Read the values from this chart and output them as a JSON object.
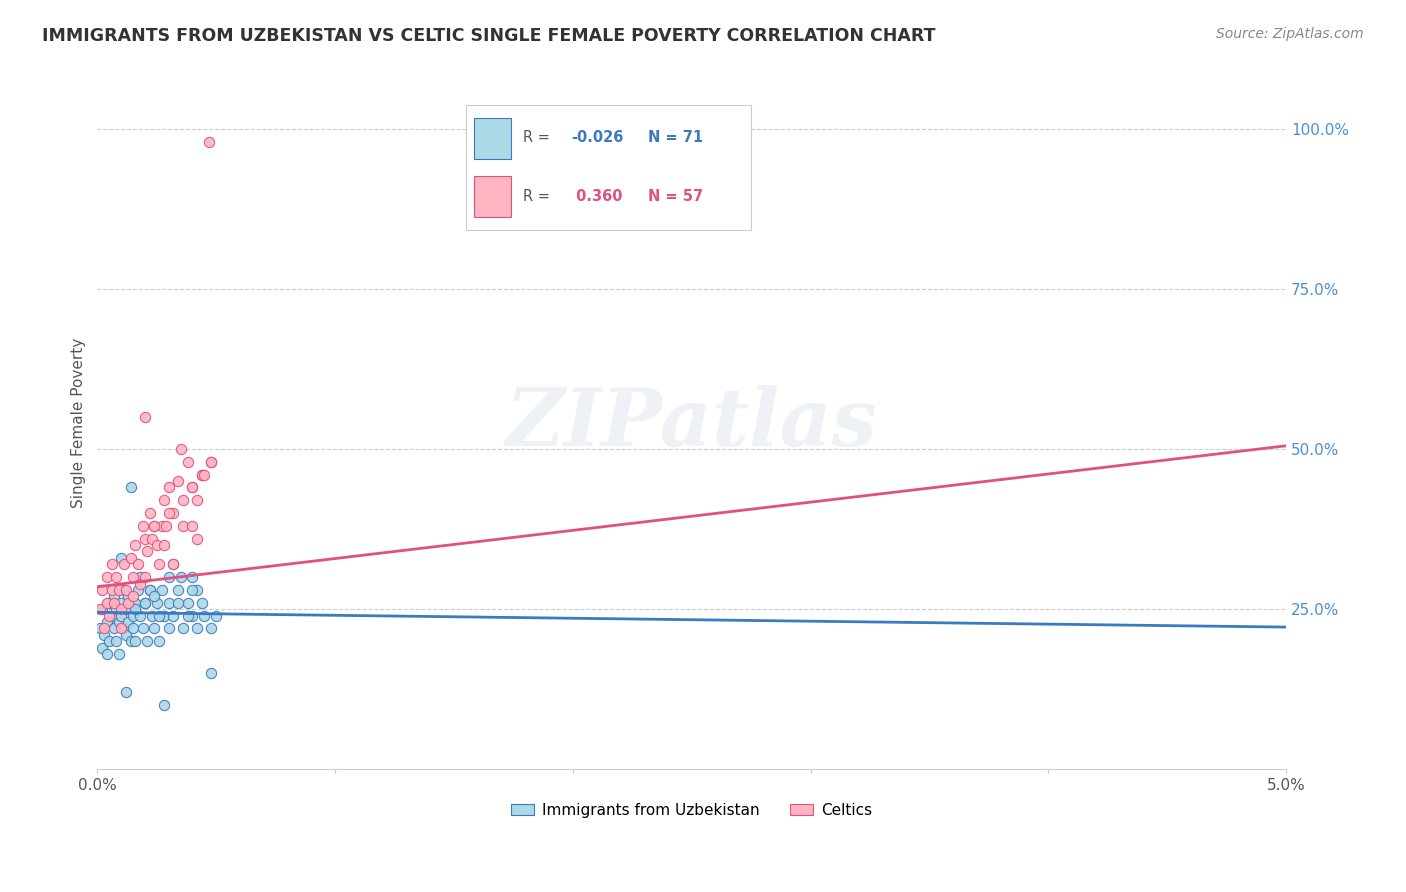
{
  "title": "IMMIGRANTS FROM UZBEKISTAN VS CELTIC SINGLE FEMALE POVERTY CORRELATION CHART",
  "source": "Source: ZipAtlas.com",
  "ylabel": "Single Female Poverty",
  "xlim": [
    0.0,
    0.05
  ],
  "ylim": [
    0.0,
    1.08
  ],
  "xticks": [
    0.0,
    0.01,
    0.02,
    0.03,
    0.04,
    0.05
  ],
  "xtick_labels": [
    "0.0%",
    "",
    "",
    "",
    "",
    "5.0%"
  ],
  "ytick_labels": [
    "25.0%",
    "50.0%",
    "75.0%",
    "100.0%"
  ],
  "yticks": [
    0.25,
    0.5,
    0.75,
    1.0
  ],
  "series1_color": "#add8e6",
  "series2_color": "#ffb6c1",
  "series1_label": "Immigrants from Uzbekistan",
  "series2_label": "Celtics",
  "series1_R": -0.026,
  "series1_N": 71,
  "series2_R": 0.36,
  "series2_N": 57,
  "trend1_color": "#3a7abf",
  "trend2_color": "#e05080",
  "watermark": "ZIPatlas",
  "trend1_x0": 0.0,
  "trend1_y0": 0.245,
  "trend1_x1": 0.05,
  "trend1_y1": 0.222,
  "trend2_x0": 0.0,
  "trend2_y0": 0.285,
  "trend2_x1": 0.05,
  "trend2_y1": 0.505,
  "series1_x": [
    0.0001,
    0.0002,
    0.0002,
    0.0003,
    0.0004,
    0.0004,
    0.0005,
    0.0005,
    0.0006,
    0.0007,
    0.0007,
    0.0008,
    0.0008,
    0.0009,
    0.0009,
    0.001,
    0.001,
    0.0011,
    0.0011,
    0.0012,
    0.0012,
    0.0013,
    0.0013,
    0.0014,
    0.0015,
    0.0015,
    0.0016,
    0.0016,
    0.0017,
    0.0018,
    0.0019,
    0.002,
    0.0021,
    0.0022,
    0.0023,
    0.0024,
    0.0025,
    0.0026,
    0.0027,
    0.0028,
    0.003,
    0.0032,
    0.0034,
    0.0036,
    0.0038,
    0.004,
    0.0042,
    0.0044,
    0.0014,
    0.0018,
    0.0022,
    0.0026,
    0.003,
    0.0034,
    0.0038,
    0.0042,
    0.001,
    0.002,
    0.003,
    0.004,
    0.0035,
    0.0045,
    0.0048,
    0.005,
    0.0016,
    0.0024,
    0.0032,
    0.004,
    0.0048,
    0.0012,
    0.0028
  ],
  "series1_y": [
    0.22,
    0.19,
    0.25,
    0.21,
    0.23,
    0.18,
    0.26,
    0.2,
    0.24,
    0.22,
    0.27,
    0.2,
    0.25,
    0.23,
    0.18,
    0.26,
    0.24,
    0.22,
    0.28,
    0.21,
    0.25,
    0.23,
    0.27,
    0.2,
    0.24,
    0.22,
    0.26,
    0.2,
    0.28,
    0.24,
    0.22,
    0.26,
    0.2,
    0.28,
    0.24,
    0.22,
    0.26,
    0.2,
    0.28,
    0.24,
    0.26,
    0.24,
    0.28,
    0.22,
    0.26,
    0.24,
    0.22,
    0.26,
    0.44,
    0.3,
    0.28,
    0.24,
    0.22,
    0.26,
    0.24,
    0.28,
    0.33,
    0.26,
    0.3,
    0.28,
    0.3,
    0.24,
    0.22,
    0.24,
    0.25,
    0.27,
    0.32,
    0.3,
    0.15,
    0.12,
    0.1
  ],
  "series2_x": [
    0.0001,
    0.0002,
    0.0003,
    0.0004,
    0.0004,
    0.0005,
    0.0006,
    0.0006,
    0.0007,
    0.0008,
    0.0009,
    0.001,
    0.0011,
    0.0012,
    0.0013,
    0.0014,
    0.0015,
    0.0015,
    0.0016,
    0.0017,
    0.0018,
    0.0019,
    0.002,
    0.0021,
    0.0022,
    0.0023,
    0.0024,
    0.0025,
    0.0026,
    0.0027,
    0.0028,
    0.0029,
    0.003,
    0.0032,
    0.0034,
    0.0036,
    0.0038,
    0.004,
    0.0042,
    0.0044,
    0.002,
    0.0024,
    0.0028,
    0.0032,
    0.0036,
    0.004,
    0.0044,
    0.0048,
    0.001,
    0.002,
    0.003,
    0.004,
    0.0048,
    0.0035,
    0.0045,
    0.0042,
    0.0047
  ],
  "series2_y": [
    0.25,
    0.28,
    0.22,
    0.3,
    0.26,
    0.24,
    0.32,
    0.28,
    0.26,
    0.3,
    0.28,
    0.25,
    0.32,
    0.28,
    0.26,
    0.33,
    0.3,
    0.27,
    0.35,
    0.32,
    0.29,
    0.38,
    0.36,
    0.34,
    0.4,
    0.36,
    0.38,
    0.35,
    0.32,
    0.38,
    0.42,
    0.38,
    0.44,
    0.4,
    0.45,
    0.42,
    0.48,
    0.44,
    0.42,
    0.46,
    0.3,
    0.38,
    0.35,
    0.32,
    0.38,
    0.44,
    0.46,
    0.48,
    0.22,
    0.55,
    0.4,
    0.38,
    0.48,
    0.5,
    0.46,
    0.36,
    0.98
  ]
}
